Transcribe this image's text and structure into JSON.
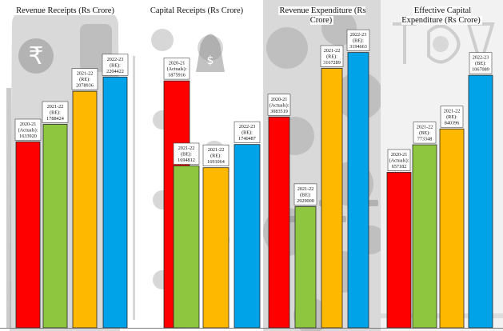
{
  "chart_data": [
    {
      "type": "bar",
      "title": "Revenue Receipts (Rs Crore)",
      "categories": [
        "2020-21 (Actuals)",
        "2021-22 (BE)",
        "2021-22 (RE)",
        "2022-23 (BE)"
      ],
      "labels": [
        "2020-21\n(Actuals):\n1633920",
        "2021-22\n(BE):\n1788424",
        "2021-22\n(RE):\n2078936",
        "2022-23\n(BE):\n2204422"
      ],
      "values": [
        1633920,
        1788424,
        2078936,
        2204422
      ],
      "colors": [
        "#ff0000",
        "#8fc63f",
        "#ffb800",
        "#00a2e8"
      ],
      "ylim": [
        0,
        2600000
      ],
      "background": "light"
    },
    {
      "type": "bar",
      "title": "Capital Receipts (Rs Crore)",
      "categories": [
        "2020-21 (Actuals)",
        "2021-22 (BE)",
        "2021-22 (RE)",
        "2022-23 (BE)"
      ],
      "labels": [
        "2020-21\n(Actuals):\n1875916",
        "2021-22\n(BE):\n1694812",
        "2021-22\n(RE):\n1691064",
        "2022-23\n(BE):\n1740487"
      ],
      "values": [
        1875916,
        1694812,
        1691064,
        1740487
      ],
      "colors": [
        "#ff0000",
        "#8fc63f",
        "#ffb800",
        "#00a2e8"
      ],
      "ylim": [
        1350000,
        1980000
      ],
      "background": "light"
    },
    {
      "type": "bar",
      "title": "Revenue Expenditure (Rs Crore)",
      "categories": [
        "2020-21 (Actuals)",
        "2021-22 (BE)",
        "2021-22 (RE)",
        "2022-23 (BE)"
      ],
      "labels": [
        "2020-21\n(Actuals):\n3083519",
        "2021-22\n(BE):\n2929000",
        "2021-22\n(RE):\n3167289",
        "2022-23\n(BE):\n3194663"
      ],
      "values": [
        3083519,
        2929000,
        3167289,
        3194663
      ],
      "colors": [
        "#ff0000",
        "#8fc63f",
        "#ffb800",
        "#00a2e8"
      ],
      "ylim": [
        2720000,
        3230000
      ],
      "background": "gray"
    },
    {
      "type": "bar",
      "title": "Effective Capital Expenditure (Rs Crore)",
      "categories": [
        "2020-21 (Actuals)",
        "2021-22 (BE)",
        "2021-22 (RE)",
        "2022-23 (BE)"
      ],
      "labels": [
        "2020-21\n(Actuals):\n657182",
        "2021-22\n(BE):\n773348",
        "2021-22\n(RE):\n840396",
        "2022-23\n(BE):\n1067089"
      ],
      "values": [
        657182,
        773348,
        840396,
        1067089
      ],
      "colors": [
        "#ff0000",
        "#8fc63f",
        "#ffb800",
        "#00a2e8"
      ],
      "ylim": [
        0,
        1250000
      ],
      "background": "light"
    }
  ]
}
